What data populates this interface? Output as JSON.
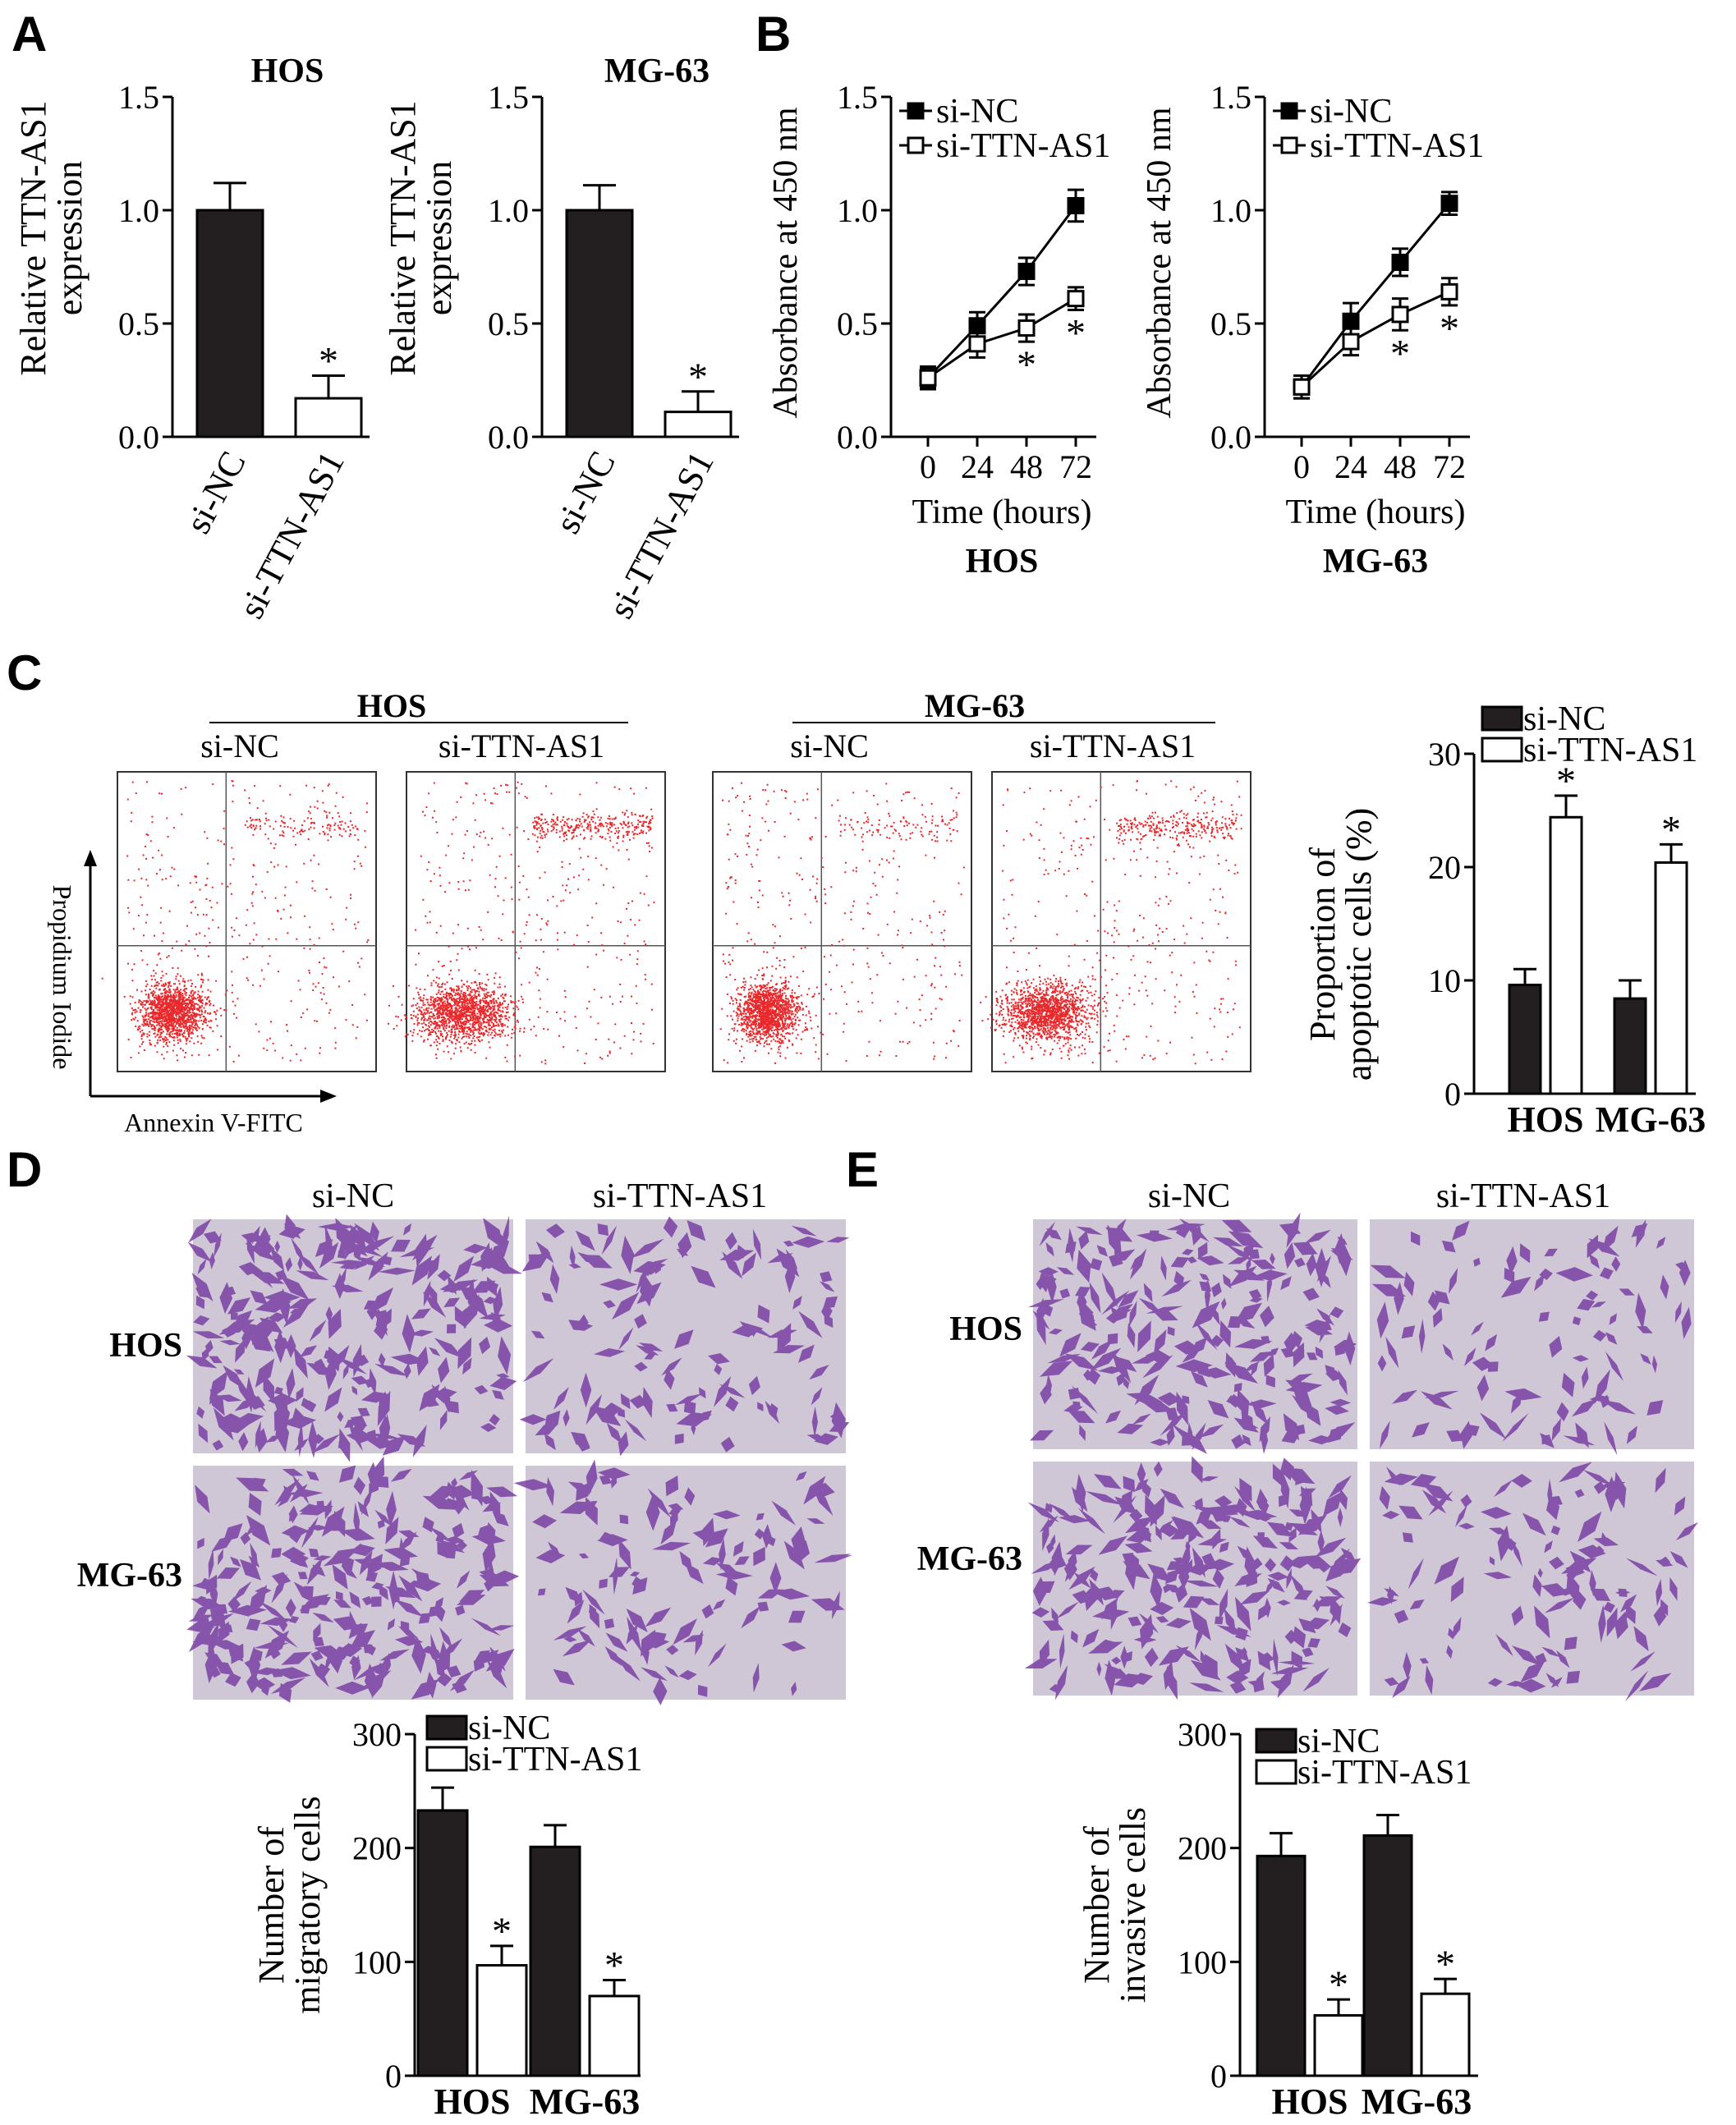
{
  "colors": {
    "black": "#000000",
    "dark_bar": "#231f20",
    "dot": "#e8282b",
    "stain": "#7a3fa3",
    "stain_bg": "#cfc7d6"
  },
  "panel_letters": {
    "A": "A",
    "B": "B",
    "C": "C",
    "D": "D",
    "E": "E"
  },
  "legend": {
    "si_nc": "si-NC",
    "si_ttn": "si-TTN-AS1"
  },
  "chart_data": [
    {
      "id": "A-HOS",
      "type": "bar",
      "title": "HOS",
      "ylabel": "Relative TTN-AS1 expression",
      "categories": [
        "si-NC",
        "si-TTN-AS1"
      ],
      "values": [
        1.0,
        0.17
      ],
      "errors": [
        0.12,
        0.1
      ],
      "ylim": [
        0,
        1.5
      ],
      "yticks": [
        "0.0",
        "0.5",
        "1.0",
        "1.5"
      ],
      "significance": [
        "",
        "*"
      ]
    },
    {
      "id": "A-MG63",
      "type": "bar",
      "title": "MG-63",
      "ylabel": "Relative TTN-AS1 expression",
      "categories": [
        "si-NC",
        "si-TTN-AS1"
      ],
      "values": [
        1.0,
        0.11
      ],
      "errors": [
        0.11,
        0.09
      ],
      "ylim": [
        0,
        1.5
      ],
      "yticks": [
        "0.0",
        "0.5",
        "1.0",
        "1.5"
      ],
      "significance": [
        "",
        "*"
      ]
    },
    {
      "id": "B-HOS",
      "type": "line",
      "title": "HOS",
      "xlabel": "Time (hours)",
      "ylabel": "Absorbance at 450 nm",
      "x": [
        0,
        24,
        48,
        72
      ],
      "xticks": [
        "0",
        "24",
        "48",
        "72"
      ],
      "ylim": [
        0,
        1.5
      ],
      "yticks": [
        "0.0",
        "0.5",
        "1.0",
        "1.5"
      ],
      "series": [
        {
          "name": "si-NC",
          "values": [
            0.26,
            0.49,
            0.73,
            1.02
          ],
          "errors": [
            0.05,
            0.06,
            0.06,
            0.07
          ]
        },
        {
          "name": "si-TTN-AS1",
          "values": [
            0.26,
            0.41,
            0.48,
            0.61
          ],
          "errors": [
            0.04,
            0.06,
            0.06,
            0.05
          ],
          "significance": [
            "",
            "",
            "*",
            "*"
          ]
        }
      ]
    },
    {
      "id": "B-MG63",
      "type": "line",
      "title": "MG-63",
      "xlabel": "Time (hours)",
      "ylabel": "Absorbance at 450 nm",
      "x": [
        0,
        24,
        48,
        72
      ],
      "xticks": [
        "0",
        "24",
        "48",
        "72"
      ],
      "ylim": [
        0,
        1.5
      ],
      "yticks": [
        "0.0",
        "0.5",
        "1.0",
        "1.5"
      ],
      "series": [
        {
          "name": "si-NC",
          "values": [
            0.22,
            0.51,
            0.77,
            1.03
          ],
          "errors": [
            0.05,
            0.08,
            0.06,
            0.05
          ]
        },
        {
          "name": "si-TTN-AS1",
          "values": [
            0.22,
            0.42,
            0.54,
            0.64
          ],
          "errors": [
            0.05,
            0.06,
            0.07,
            0.06
          ],
          "significance": [
            "",
            "",
            "*",
            "*"
          ]
        }
      ]
    },
    {
      "id": "C-apoptosis",
      "type": "bar",
      "ylabel": "Proportion of apoptotic cells (%)",
      "categories": [
        "HOS",
        "MG-63"
      ],
      "ylim": [
        0,
        30
      ],
      "yticks": [
        "0",
        "10",
        "20",
        "30"
      ],
      "series": [
        {
          "name": "si-NC",
          "values": [
            9.6,
            8.4
          ],
          "errors": [
            1.4,
            1.6
          ]
        },
        {
          "name": "si-TTN-AS1",
          "values": [
            24.4,
            20.4
          ],
          "errors": [
            1.9,
            1.6
          ],
          "significance": [
            "*",
            "*"
          ]
        }
      ]
    },
    {
      "id": "D-migration",
      "type": "bar",
      "ylabel": "Number of migratory cells",
      "categories": [
        "HOS",
        "MG-63"
      ],
      "ylim": [
        0,
        300
      ],
      "yticks": [
        "0",
        "100",
        "200",
        "300"
      ],
      "series": [
        {
          "name": "si-NC",
          "values": [
            233,
            201
          ],
          "errors": [
            20,
            19
          ]
        },
        {
          "name": "si-TTN-AS1",
          "values": [
            97,
            70
          ],
          "errors": [
            17,
            14
          ],
          "significance": [
            "*",
            "*"
          ]
        }
      ]
    },
    {
      "id": "E-invasion",
      "type": "bar",
      "ylabel": "Number of invasive cells",
      "categories": [
        "HOS",
        "MG-63"
      ],
      "ylim": [
        0,
        300
      ],
      "yticks": [
        "0",
        "100",
        "200",
        "300"
      ],
      "series": [
        {
          "name": "si-NC",
          "values": [
            193,
            211
          ],
          "errors": [
            20,
            18
          ]
        },
        {
          "name": "si-TTN-AS1",
          "values": [
            53,
            72
          ],
          "errors": [
            14,
            13
          ],
          "significance": [
            "*",
            "*"
          ]
        }
      ]
    }
  ],
  "flow": {
    "groups": [
      "HOS",
      "MG-63"
    ],
    "conditions": [
      "si-NC",
      "si-TTN-AS1"
    ],
    "x_axis_label": "Annexin V-FITC",
    "y_axis_label": "Propidium Iodide"
  },
  "transwell": {
    "conditions": [
      "si-NC",
      "si-TTN-AS1"
    ],
    "rows": [
      "HOS",
      "MG-63"
    ]
  }
}
